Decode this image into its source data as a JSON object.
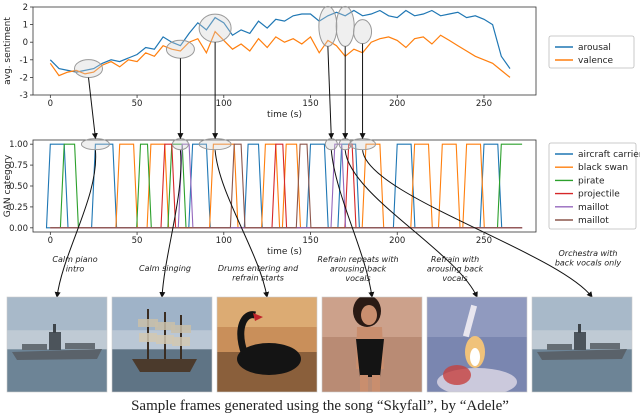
{
  "chart_data": [
    {
      "type": "line",
      "xlabel": "time (s)",
      "ylabel": "avg. sentiment",
      "xlim": [
        -10,
        280
      ],
      "ylim": [
        -3,
        2
      ],
      "xticks": [
        0,
        50,
        100,
        150,
        200,
        250
      ],
      "yticks": [
        -3,
        -2,
        -1,
        0,
        1,
        2
      ],
      "legend": "right",
      "series": [
        {
          "name": "arousal",
          "color": "#1f77b4",
          "x": [
            0,
            5,
            10,
            15,
            20,
            25,
            30,
            35,
            40,
            45,
            50,
            55,
            60,
            65,
            70,
            75,
            80,
            85,
            90,
            95,
            100,
            105,
            110,
            115,
            120,
            125,
            130,
            135,
            140,
            145,
            150,
            155,
            160,
            165,
            170,
            175,
            180,
            185,
            190,
            195,
            200,
            205,
            210,
            215,
            220,
            225,
            230,
            235,
            240,
            245,
            250,
            255,
            260,
            265
          ],
          "values": [
            -1.0,
            -1.5,
            -1.6,
            -1.7,
            -1.6,
            -1.5,
            -1.2,
            -1.0,
            -1.1,
            -0.9,
            -0.7,
            -0.3,
            -0.4,
            0.3,
            0.0,
            -0.2,
            0.5,
            1.1,
            0.7,
            1.4,
            1.1,
            0.4,
            0.7,
            0.5,
            1.2,
            0.8,
            1.3,
            1.2,
            1.5,
            1.6,
            1.6,
            1.2,
            1.5,
            1.7,
            1.5,
            1.8,
            1.5,
            1.6,
            1.8,
            1.5,
            1.4,
            1.8,
            1.5,
            1.6,
            1.8,
            1.5,
            1.6,
            1.7,
            1.4,
            1.5,
            1.3,
            1.0,
            -0.8,
            -1.5
          ]
        },
        {
          "name": "valence",
          "color": "#ff7f0e",
          "x": [
            0,
            5,
            10,
            15,
            20,
            25,
            30,
            35,
            40,
            45,
            50,
            55,
            60,
            65,
            70,
            75,
            80,
            85,
            90,
            95,
            100,
            105,
            110,
            115,
            120,
            125,
            130,
            135,
            140,
            145,
            150,
            155,
            160,
            165,
            170,
            175,
            180,
            185,
            190,
            195,
            200,
            205,
            210,
            215,
            220,
            225,
            230,
            235,
            240,
            245,
            250,
            255,
            260,
            265
          ],
          "values": [
            -1.2,
            -1.9,
            -1.7,
            -1.6,
            -1.8,
            -1.7,
            -1.3,
            -1.1,
            -1.4,
            -1.0,
            -1.1,
            -0.6,
            -0.8,
            -0.2,
            -0.4,
            -0.5,
            0.0,
            0.2,
            -0.6,
            0.6,
            0.1,
            -0.4,
            -0.1,
            -0.5,
            0.2,
            -0.3,
            0.3,
            0.0,
            0.2,
            -0.1,
            0.3,
            -0.6,
            0.1,
            -0.2,
            -0.8,
            -0.4,
            -0.6,
            0.0,
            0.2,
            0.3,
            0.1,
            -0.3,
            0.2,
            0.3,
            -0.1,
            0.4,
            0.1,
            -0.2,
            -0.5,
            -0.8,
            -1.0,
            -1.2,
            -1.6,
            -2.0
          ]
        }
      ],
      "ellipses": [
        [
          22,
          -1.5
        ],
        [
          75,
          -0.4
        ],
        [
          95,
          0.8
        ],
        [
          160,
          0.9
        ],
        [
          170,
          0.9
        ],
        [
          180,
          0.6
        ]
      ]
    },
    {
      "type": "line",
      "xlabel": "time (s)",
      "ylabel": "GAN category",
      "xlim": [
        -10,
        280
      ],
      "ylim": [
        -0.05,
        1.05
      ],
      "xticks": [
        0,
        50,
        100,
        150,
        200,
        250
      ],
      "yticks": [
        0.0,
        0.25,
        0.5,
        0.75,
        1.0
      ],
      "ytick_labels": [
        "0.00",
        "0.25",
        "0.50",
        "0.75",
        "1.00"
      ],
      "legend": "right",
      "series": [
        {
          "name": "aircraft carrier",
          "color": "#1f77b4",
          "segments": [
            [
              0,
              8
            ],
            [
              26,
              36
            ],
            [
              82,
              90
            ],
            [
              114,
              120
            ],
            [
              150,
              158
            ],
            [
              168,
              176
            ],
            [
              200,
              208
            ],
            [
              250,
              258
            ]
          ]
        },
        {
          "name": "black swan",
          "color": "#ff7f0e",
          "segments": [
            [
              40,
              48
            ],
            [
              58,
              66
            ],
            [
              94,
              106
            ],
            [
              124,
              130
            ],
            [
              136,
              142
            ],
            [
              182,
              190
            ],
            [
              210,
              218
            ],
            [
              226,
              234
            ],
            [
              240,
              248
            ]
          ]
        },
        {
          "name": "pirate",
          "color": "#2ca02c",
          "segments": [
            [
              8,
              14
            ],
            [
              52,
              56
            ],
            [
              70,
              76
            ],
            [
              260,
              266
            ]
          ]
        },
        {
          "name": "projectile",
          "color": "#d62728",
          "segments": [
            [
              66,
              70
            ],
            [
              130,
              134
            ],
            [
              172,
              174
            ]
          ]
        },
        {
          "name": "maillot",
          "color": "#9467bd",
          "segments": [
            [
              76,
              80
            ],
            [
              164,
              168
            ]
          ]
        },
        {
          "name": "maillot",
          "color": "#8c564b",
          "segments": [
            [
              106,
              110
            ],
            [
              144,
              148
            ]
          ]
        }
      ],
      "ellipses": [
        [
          26,
          1.0
        ],
        [
          75,
          1.0
        ],
        [
          95,
          1.0
        ],
        [
          162,
          1.0
        ],
        [
          170,
          1.0
        ],
        [
          180,
          1.0
        ]
      ]
    }
  ],
  "annotations": [
    {
      "lines": [
        "Calm piano",
        "intro"
      ]
    },
    {
      "lines": [
        "Calm singing"
      ]
    },
    {
      "lines": [
        "Drums entering and",
        "refrain starts"
      ]
    },
    {
      "lines": [
        "Refrain repeats with",
        "arousing back",
        "vocals"
      ]
    },
    {
      "lines": [
        "Refrain with",
        "arousing back",
        "vocals"
      ]
    },
    {
      "lines": [
        "Orchestra with",
        "back vocals only"
      ]
    }
  ],
  "frames": [
    {
      "label": "aircraft carrier"
    },
    {
      "label": "pirate"
    },
    {
      "label": "black swan"
    },
    {
      "label": "maillot"
    },
    {
      "label": "projectile"
    },
    {
      "label": "aircraft carrier"
    }
  ],
  "caption": "Sample frames generated using the song “Skyfall”, by “Adele”"
}
